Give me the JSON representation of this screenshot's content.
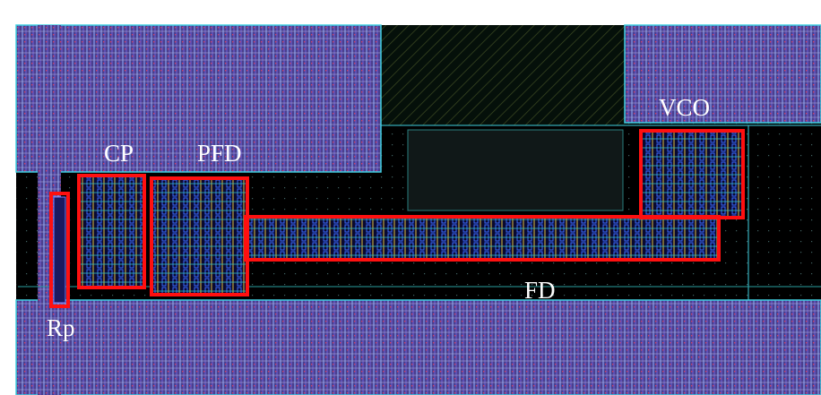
{
  "labels": {
    "rp": "Rp",
    "cp": "CP",
    "pfd": "PFD",
    "fd": "FD",
    "vco": "VCO"
  }
}
